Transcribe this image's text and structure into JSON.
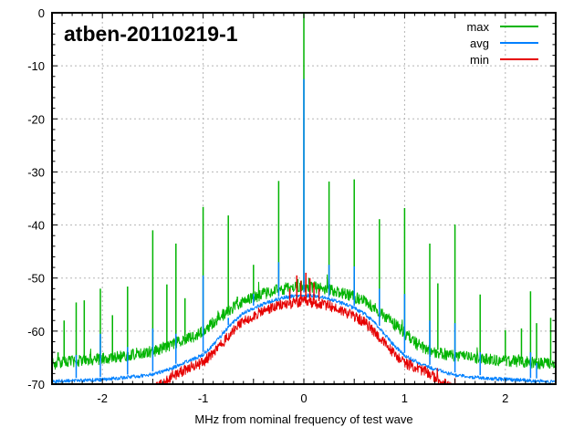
{
  "chart_data": {
    "type": "line",
    "title": "atben-20110219-1",
    "xlabel": "MHz from nominal frequency of test wave",
    "xlim": [
      -2.5,
      2.5
    ],
    "ylim": [
      -70,
      0
    ],
    "grid": true,
    "legend_position": "top-right",
    "background_color": "#ffffff",
    "axis_color": "#000000",
    "grid_color": "#b5b5b5",
    "x_ticks": {
      "values": [
        -2,
        -1,
        0,
        1,
        2
      ],
      "labels": [
        "-2",
        "-1",
        "0",
        "1",
        "2"
      ],
      "minor_step": 0.1,
      "medium_step": 0.5
    },
    "y_ticks": {
      "values": [
        0,
        -10,
        -20,
        -30,
        -40,
        -50,
        -60,
        -70
      ],
      "labels": [
        "0",
        "-10",
        "-20",
        "-30",
        "-40",
        "-50",
        "-60",
        "-70"
      ],
      "minor_step": 2
    },
    "grid_x": [
      -2,
      -1,
      0,
      1,
      2
    ],
    "grid_y": [
      -10,
      -20,
      -30,
      -40,
      -50,
      -60
    ],
    "series": [
      {
        "name": "max",
        "color": "#00b400",
        "noise_db": 1.1,
        "baseline": [
          [
            -2.5,
            -66.2
          ],
          [
            -2.3,
            -65.7
          ],
          [
            -2.0,
            -65.2
          ],
          [
            -1.8,
            -64.7
          ],
          [
            -1.6,
            -64.1
          ],
          [
            -1.5,
            -63.8
          ],
          [
            -1.4,
            -63.2
          ],
          [
            -1.3,
            -62.4
          ],
          [
            -1.2,
            -61.6
          ],
          [
            -1.12,
            -61.2
          ],
          [
            -1.08,
            -60.9
          ],
          [
            -1.0,
            -60.0
          ],
          [
            -0.9,
            -58.4
          ],
          [
            -0.8,
            -56.9
          ],
          [
            -0.7,
            -55.5
          ],
          [
            -0.6,
            -54.3
          ],
          [
            -0.5,
            -53.6
          ],
          [
            -0.4,
            -53.0
          ],
          [
            -0.3,
            -52.4
          ],
          [
            -0.2,
            -52.0
          ],
          [
            -0.1,
            -51.7
          ],
          [
            0.0,
            -51.5
          ],
          [
            0.1,
            -51.7
          ],
          [
            0.2,
            -52.0
          ],
          [
            0.3,
            -52.4
          ],
          [
            0.4,
            -52.9
          ],
          [
            0.5,
            -53.6
          ],
          [
            0.6,
            -54.4
          ],
          [
            0.7,
            -55.6
          ],
          [
            0.8,
            -57.1
          ],
          [
            0.9,
            -58.7
          ],
          [
            1.0,
            -60.3
          ],
          [
            1.05,
            -61.4
          ],
          [
            1.1,
            -62.0
          ],
          [
            1.15,
            -63.0
          ],
          [
            1.25,
            -63.7
          ],
          [
            1.4,
            -64.3
          ],
          [
            1.6,
            -64.9
          ],
          [
            1.9,
            -65.4
          ],
          [
            2.2,
            -65.8
          ],
          [
            2.5,
            -66.3
          ]
        ],
        "spurs": [
          [
            -2.44,
            -64.0
          ],
          [
            -2.38,
            -58.0
          ],
          [
            -2.26,
            -54.6
          ],
          [
            -2.18,
            -54.2
          ],
          [
            -2.02,
            -52.0
          ],
          [
            -1.9,
            -57.0
          ],
          [
            -1.75,
            -51.6
          ],
          [
            -1.5,
            -41.0
          ],
          [
            -1.36,
            -51.2
          ],
          [
            -1.27,
            -43.5
          ],
          [
            -1.18,
            -53.8
          ],
          [
            -1.0,
            -36.6
          ],
          [
            -0.75,
            -38.2
          ],
          [
            -0.66,
            -53.5
          ],
          [
            -0.5,
            -47.5
          ],
          [
            -0.25,
            -31.7
          ],
          [
            -0.06,
            -50.2
          ],
          [
            0.0,
            0.0
          ],
          [
            0.05,
            -50.0
          ],
          [
            0.25,
            -31.8
          ],
          [
            0.5,
            -31.4
          ],
          [
            0.75,
            -38.9
          ],
          [
            1.0,
            -36.8
          ],
          [
            1.25,
            -43.5
          ],
          [
            1.33,
            -51.0
          ],
          [
            1.5,
            -39.9
          ],
          [
            1.75,
            -53.1
          ],
          [
            2.0,
            -59.8
          ],
          [
            2.16,
            -59.5
          ],
          [
            2.25,
            -52.5
          ],
          [
            2.31,
            -58.5
          ],
          [
            2.45,
            -57.5
          ]
        ]
      },
      {
        "name": "avg",
        "color": "#0080ff",
        "noise_db": 0.35,
        "baseline": [
          [
            -2.5,
            -69.5
          ],
          [
            -2.2,
            -69.3
          ],
          [
            -2.0,
            -69.1
          ],
          [
            -1.8,
            -68.8
          ],
          [
            -1.6,
            -68.4
          ],
          [
            -1.5,
            -68.1
          ],
          [
            -1.4,
            -67.6
          ],
          [
            -1.3,
            -66.9
          ],
          [
            -1.2,
            -66.1
          ],
          [
            -1.1,
            -65.3
          ],
          [
            -1.0,
            -64.4
          ],
          [
            -0.9,
            -62.6
          ],
          [
            -0.8,
            -60.4
          ],
          [
            -0.7,
            -58.3
          ],
          [
            -0.6,
            -56.6
          ],
          [
            -0.5,
            -55.7
          ],
          [
            -0.4,
            -54.9
          ],
          [
            -0.3,
            -54.2
          ],
          [
            -0.2,
            -53.7
          ],
          [
            -0.1,
            -53.4
          ],
          [
            0.0,
            -53.2
          ],
          [
            0.1,
            -53.4
          ],
          [
            0.2,
            -53.7
          ],
          [
            0.3,
            -54.2
          ],
          [
            0.4,
            -54.9
          ],
          [
            0.5,
            -55.7
          ],
          [
            0.6,
            -56.7
          ],
          [
            0.7,
            -58.4
          ],
          [
            0.8,
            -60.6
          ],
          [
            0.9,
            -62.8
          ],
          [
            1.0,
            -64.6
          ],
          [
            1.1,
            -65.6
          ],
          [
            1.2,
            -66.5
          ],
          [
            1.3,
            -67.2
          ],
          [
            1.5,
            -68.3
          ],
          [
            1.8,
            -68.9
          ],
          [
            2.1,
            -69.2
          ],
          [
            2.5,
            -69.6
          ]
        ],
        "spurs": [
          [
            -2.26,
            -64.5
          ],
          [
            -2.02,
            -60.5
          ],
          [
            -1.75,
            -63.0
          ],
          [
            -1.5,
            -59.5
          ],
          [
            -1.27,
            -60.5
          ],
          [
            -1.0,
            -49.5
          ],
          [
            -0.75,
            -57.5
          ],
          [
            -0.5,
            -53.0
          ],
          [
            -0.25,
            -47.0
          ],
          [
            -0.14,
            -52.5
          ],
          [
            -0.07,
            -50.5
          ],
          [
            0.0,
            -12.5
          ],
          [
            0.02,
            -50.0
          ],
          [
            0.06,
            -50.8
          ],
          [
            0.15,
            -52.5
          ],
          [
            0.25,
            -47.5
          ],
          [
            0.5,
            -47.8
          ],
          [
            0.75,
            -52.0
          ],
          [
            1.0,
            -53.0
          ],
          [
            1.25,
            -58.0
          ],
          [
            1.5,
            -58.5
          ],
          [
            1.75,
            -64.0
          ],
          [
            2.25,
            -64.0
          ],
          [
            2.31,
            -66.0
          ]
        ]
      },
      {
        "name": "min",
        "color": "#e60000",
        "noise_db": 1.0,
        "baseline": [
          [
            -2.5,
            -73.5
          ],
          [
            -1.7,
            -72.5
          ],
          [
            -1.55,
            -71.5
          ],
          [
            -1.45,
            -70.4
          ],
          [
            -1.35,
            -69.2
          ],
          [
            -1.25,
            -68.0
          ],
          [
            -1.15,
            -67.0
          ],
          [
            -1.05,
            -66.3
          ],
          [
            -1.0,
            -65.9
          ],
          [
            -0.9,
            -64.1
          ],
          [
            -0.8,
            -62.1
          ],
          [
            -0.7,
            -59.9
          ],
          [
            -0.6,
            -58.2
          ],
          [
            -0.5,
            -57.1
          ],
          [
            -0.4,
            -56.2
          ],
          [
            -0.3,
            -55.5
          ],
          [
            -0.2,
            -55.0
          ],
          [
            -0.1,
            -54.7
          ],
          [
            0.0,
            -54.5
          ],
          [
            0.1,
            -54.7
          ],
          [
            0.2,
            -55.0
          ],
          [
            0.3,
            -55.6
          ],
          [
            0.4,
            -56.3
          ],
          [
            0.5,
            -57.2
          ],
          [
            0.6,
            -58.3
          ],
          [
            0.7,
            -60.1
          ],
          [
            0.8,
            -62.3
          ],
          [
            0.9,
            -64.3
          ],
          [
            1.0,
            -66.0
          ],
          [
            1.1,
            -66.8
          ],
          [
            1.2,
            -67.6
          ],
          [
            1.3,
            -68.7
          ],
          [
            1.4,
            -69.9
          ],
          [
            1.5,
            -71.2
          ],
          [
            1.7,
            -72.6
          ],
          [
            2.5,
            -74.0
          ]
        ],
        "spurs": [
          [
            -0.14,
            -52.0
          ],
          [
            -0.07,
            -49.5
          ],
          [
            -0.03,
            -50.5
          ],
          [
            0.02,
            -49.0
          ],
          [
            0.06,
            -50.0
          ],
          [
            0.1,
            -50.8
          ],
          [
            0.15,
            -52.0
          ]
        ]
      }
    ]
  }
}
